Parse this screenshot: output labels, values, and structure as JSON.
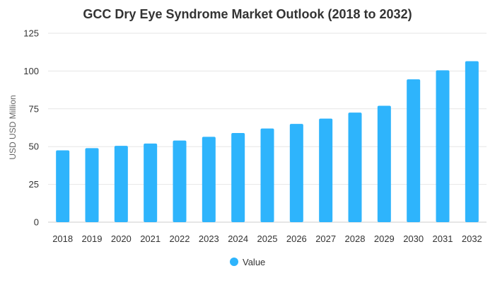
{
  "chart_data": {
    "type": "bar",
    "title": "GCC Dry Eye Syndrome Market Outlook (2018 to 2032)",
    "xlabel": "",
    "ylabel": "USD USD Million",
    "ylim": [
      0,
      125
    ],
    "yticks": [
      "0",
      "25",
      "50",
      "75",
      "100",
      "125"
    ],
    "categories": [
      "2018",
      "2019",
      "2020",
      "2021",
      "2022",
      "2023",
      "2024",
      "2025",
      "2026",
      "2027",
      "2028",
      "2029",
      "2030",
      "2031",
      "2032"
    ],
    "series": [
      {
        "name": "Value",
        "color": "#2eb4fc",
        "values": [
          47.5,
          49,
          50.5,
          52,
          54,
          56.5,
          59,
          62,
          65,
          68.5,
          72.5,
          77,
          94.5,
          100.5,
          106.5
        ]
      }
    ],
    "grid": true,
    "legend_position": "bottom-center"
  }
}
